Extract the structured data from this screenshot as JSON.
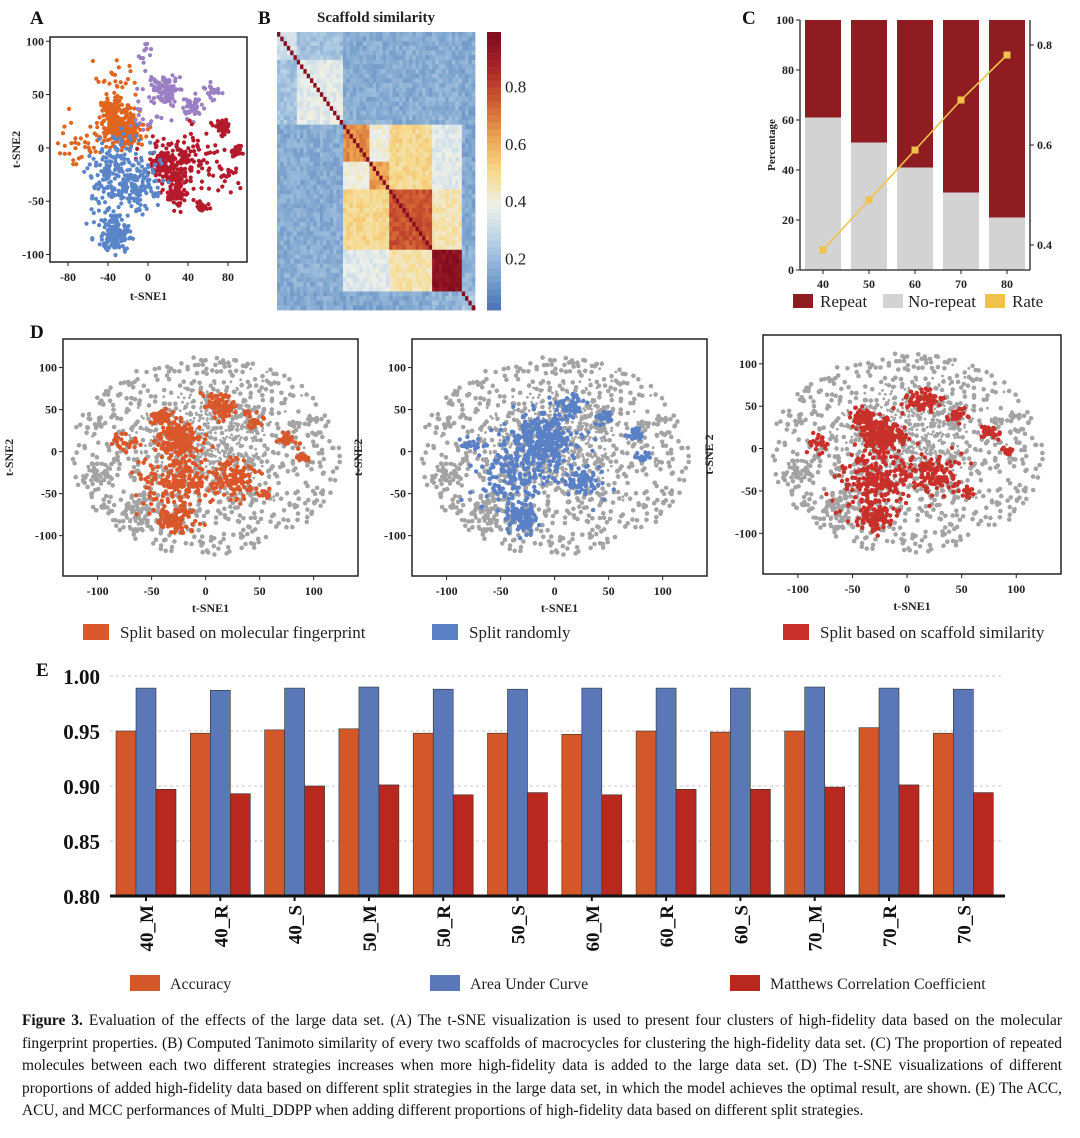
{
  "panel_labels": {
    "a": "A",
    "b": "B",
    "c": "C",
    "d": "D",
    "e": "E"
  },
  "chart_data": [
    {
      "id": "A",
      "type": "scatter",
      "xlabel": "t-SNE1",
      "ylabel": "t-SNE2",
      "xlim": [
        -98,
        99
      ],
      "ylim": [
        -107,
        104
      ],
      "xticks": [
        -80,
        -40,
        0,
        40,
        80
      ],
      "yticks": [
        100,
        50,
        0,
        -50,
        -100
      ],
      "grid": false,
      "clusters": [
        {
          "color": "#e0651e",
          "groups": [
            {
              "center": [
                -25,
                18
              ],
              "spread": 9,
              "count": 260
            },
            {
              "center": [
                -36,
                38
              ],
              "spread": 5,
              "count": 80
            },
            {
              "center": [
                -62,
                8
              ],
              "spread": 14,
              "count": 45
            },
            {
              "center": [
                -32,
                65
              ],
              "spread": 9,
              "count": 22
            }
          ]
        },
        {
          "color": "#9a7fc3",
          "groups": [
            {
              "center": [
                15,
                55
              ],
              "spread": 7,
              "count": 90
            },
            {
              "center": [
                45,
                40
              ],
              "spread": 5,
              "count": 40
            },
            {
              "center": [
                63,
                53
              ],
              "spread": 4,
              "count": 22
            },
            {
              "center": [
                2,
                38
              ],
              "spread": 12,
              "count": 22
            },
            {
              "center": [
                -3,
                90
              ],
              "spread": 4,
              "count": 10
            }
          ]
        },
        {
          "color": "#b51a2c",
          "groups": [
            {
              "center": [
                24,
                -15
              ],
              "spread": 11,
              "count": 180
            },
            {
              "center": [
                28,
                -42
              ],
              "spread": 6,
              "count": 60
            },
            {
              "center": [
                75,
                20
              ],
              "spread": 4,
              "count": 50
            },
            {
              "center": [
                55,
                -8
              ],
              "spread": 14,
              "count": 60
            },
            {
              "center": [
                88,
                -4
              ],
              "spread": 3,
              "count": 25
            },
            {
              "center": [
                55,
                -55
              ],
              "spread": 3,
              "count": 20
            },
            {
              "center": [
                80,
                -30
              ],
              "spread": 6,
              "count": 15
            }
          ]
        },
        {
          "color": "#5a85c8",
          "groups": [
            {
              "center": [
                -28,
                -27
              ],
              "spread": 17,
              "count": 250
            },
            {
              "center": [
                -32,
                -80
              ],
              "spread": 8,
              "count": 150
            },
            {
              "center": [
                -5,
                -35
              ],
              "spread": 10,
              "count": 50
            }
          ]
        }
      ]
    },
    {
      "id": "B",
      "type": "heatmap",
      "title": "Scaffold similarity",
      "colorbar_range": [
        0.02,
        0.99
      ],
      "colorbar_ticks": [
        "0.2",
        "0.4",
        "0.6",
        "0.8"
      ],
      "colormap": [
        "#4a72b2",
        "#7fa6d0",
        "#b9d2e6",
        "#eef0ea",
        "#f6d98a",
        "#eba24f",
        "#cf5a31",
        "#a8222a",
        "#7f0a1e"
      ],
      "block_edges": [
        0,
        10,
        33,
        46,
        56,
        78,
        93,
        100
      ],
      "block_mean": [
        [
          0.32,
          0.22,
          0.16,
          0.16,
          0.16,
          0.16,
          0.15
        ],
        [
          0.22,
          0.36,
          0.16,
          0.16,
          0.16,
          0.17,
          0.15
        ],
        [
          0.16,
          0.16,
          0.66,
          0.4,
          0.5,
          0.35,
          0.15
        ],
        [
          0.16,
          0.16,
          0.4,
          0.62,
          0.5,
          0.36,
          0.15
        ],
        [
          0.16,
          0.16,
          0.5,
          0.5,
          0.76,
          0.46,
          0.15
        ],
        [
          0.16,
          0.17,
          0.35,
          0.36,
          0.46,
          0.95,
          0.18
        ],
        [
          0.15,
          0.15,
          0.15,
          0.15,
          0.15,
          0.18,
          0.22
        ]
      ]
    },
    {
      "id": "C",
      "type": "bar",
      "categories": [
        "40",
        "50",
        "60",
        "70",
        "80"
      ],
      "ylabel": "Percentage",
      "ylim": [
        0,
        100
      ],
      "yticks": [
        0,
        20,
        40,
        60,
        80,
        100
      ],
      "y2lim": [
        0.35,
        0.85
      ],
      "y2ticks": [
        "0.4",
        "0.6",
        "0.8"
      ],
      "series": [
        {
          "name": "Repeat",
          "color": "#8e1c20",
          "values": [
            39,
            49,
            59,
            69,
            79
          ]
        },
        {
          "name": "No-repeat",
          "color": "#d3d3d3",
          "values": [
            61,
            51,
            41,
            31,
            21
          ]
        },
        {
          "name": "Rate",
          "color": "#f0c24a",
          "type": "line",
          "axis": "right",
          "values": [
            0.39,
            0.49,
            0.59,
            0.69,
            0.78
          ]
        }
      ],
      "legend": "bottom"
    },
    {
      "id": "D1",
      "type": "scatter",
      "xlabel": "t-SNE1",
      "ylabel": "t-SNE2",
      "xlim": [
        -132,
        141
      ],
      "ylim": [
        -148,
        134
      ],
      "xticks": [
        -100,
        -50,
        0,
        50,
        100
      ],
      "yticks": [
        100,
        50,
        0,
        -50,
        -100
      ],
      "background_color": "#a3a3a3",
      "legend_label": "Split based on molecular fingerprint",
      "highlight_color": "#d9572a",
      "highlight_groups": [
        {
          "center": [
            -25,
            15
          ],
          "spread": 10,
          "count": 200
        },
        {
          "center": [
            -42,
            40
          ],
          "spread": 5,
          "count": 60
        },
        {
          "center": [
            15,
            55
          ],
          "spread": 7,
          "count": 80
        },
        {
          "center": [
            -25,
            -35
          ],
          "spread": 17,
          "count": 200
        },
        {
          "center": [
            -30,
            -80
          ],
          "spread": 8,
          "count": 100
        },
        {
          "center": [
            25,
            -32
          ],
          "spread": 12,
          "count": 120
        },
        {
          "center": [
            75,
            15
          ],
          "spread": 4,
          "count": 30
        },
        {
          "center": [
            90,
            -5
          ],
          "spread": 3,
          "count": 15
        },
        {
          "center": [
            55,
            -50
          ],
          "spread": 3,
          "count": 15
        },
        {
          "center": [
            -75,
            10
          ],
          "spread": 6,
          "count": 25
        },
        {
          "center": [
            45,
            40
          ],
          "spread": 5,
          "count": 25
        }
      ]
    },
    {
      "id": "D2",
      "type": "scatter",
      "xlabel": "t-SNE1",
      "ylabel": "t-SNE2",
      "xlim": [
        -132,
        141
      ],
      "ylim": [
        -148,
        134
      ],
      "xticks": [
        -100,
        -50,
        0,
        50,
        100
      ],
      "yticks": [
        100,
        50,
        0,
        -50,
        -100
      ],
      "background_color": "#a3a3a3",
      "legend_label": "Split randomly",
      "highlight_color": "#5a80c6",
      "highlight_groups": [
        {
          "center": [
            -12,
            15
          ],
          "spread": 15,
          "count": 300
        },
        {
          "center": [
            -30,
            -80
          ],
          "spread": 8,
          "count": 100
        },
        {
          "center": [
            -40,
            -30
          ],
          "spread": 17,
          "count": 150
        },
        {
          "center": [
            25,
            -35
          ],
          "spread": 10,
          "count": 80
        },
        {
          "center": [
            15,
            55
          ],
          "spread": 7,
          "count": 60
        },
        {
          "center": [
            75,
            20
          ],
          "spread": 4,
          "count": 25
        },
        {
          "center": [
            82,
            -5
          ],
          "spread": 4,
          "count": 15
        },
        {
          "center": [
            -80,
            10
          ],
          "spread": 5,
          "count": 20
        },
        {
          "center": [
            45,
            40
          ],
          "spread": 5,
          "count": 25
        }
      ]
    },
    {
      "id": "D3",
      "type": "scatter",
      "xlabel": "t-SNE1",
      "ylabel": "t-SNE 2",
      "xlim": [
        -132,
        141
      ],
      "ylim": [
        -148,
        134
      ],
      "xticks": [
        -100,
        -50,
        0,
        50,
        100
      ],
      "yticks": [
        100,
        50,
        0,
        -50,
        -100
      ],
      "background_color": "#a3a3a3",
      "legend_label": "Split based on scaffold similarity",
      "highlight_color": "#c8302a",
      "highlight_groups": [
        {
          "center": [
            -25,
            15
          ],
          "spread": 10,
          "count": 200
        },
        {
          "center": [
            -42,
            38
          ],
          "spread": 5,
          "count": 60
        },
        {
          "center": [
            15,
            55
          ],
          "spread": 7,
          "count": 80
        },
        {
          "center": [
            -28,
            -35
          ],
          "spread": 17,
          "count": 220
        },
        {
          "center": [
            -30,
            -80
          ],
          "spread": 8,
          "count": 100
        },
        {
          "center": [
            25,
            -30
          ],
          "spread": 12,
          "count": 120
        },
        {
          "center": [
            75,
            18
          ],
          "spread": 4,
          "count": 30
        },
        {
          "center": [
            90,
            -5
          ],
          "spread": 3,
          "count": 15
        },
        {
          "center": [
            55,
            -52
          ],
          "spread": 3,
          "count": 15
        },
        {
          "center": [
            -80,
            8
          ],
          "spread": 6,
          "count": 25
        },
        {
          "center": [
            48,
            40
          ],
          "spread": 5,
          "count": 25
        }
      ]
    },
    {
      "id": "E",
      "type": "bar",
      "categories": [
        "40_M",
        "40_R",
        "40_S",
        "50_M",
        "50_R",
        "50_S",
        "60_M",
        "60_R",
        "60_S",
        "70_M",
        "70_R",
        "70_S"
      ],
      "ylim": [
        0.8,
        1.0
      ],
      "yticks": [
        "0.80",
        "0.85",
        "0.90",
        "0.95",
        "1.00"
      ],
      "grid": "dashed horizontal",
      "series": [
        {
          "name": "Accuracy",
          "color": "#d4572a",
          "values": [
            0.95,
            0.948,
            0.951,
            0.952,
            0.948,
            0.948,
            0.947,
            0.95,
            0.949,
            0.95,
            0.953,
            0.948
          ]
        },
        {
          "name": "Area Under Curve",
          "color": "#5a78b8",
          "values": [
            0.989,
            0.987,
            0.989,
            0.99,
            0.988,
            0.988,
            0.989,
            0.989,
            0.989,
            0.99,
            0.989,
            0.988
          ]
        },
        {
          "name": "Matthews Correlation Coefficient",
          "color": "#b9281f",
          "values": [
            0.897,
            0.893,
            0.9,
            0.901,
            0.892,
            0.894,
            0.892,
            0.897,
            0.897,
            0.899,
            0.901,
            0.894
          ]
        }
      ],
      "legend": "bottom"
    }
  ],
  "caption": {
    "label": "Figure 3.",
    "text": "Evaluation of the effects of the large data set. (A) The t-SNE visualization is used to present four clusters of high-fidelity data based on the molecular fingerprint properties. (B) Computed Tanimoto similarity of every two scaffolds of macrocycles for clustering the high-fidelity data set. (C) The proportion of repeated molecules between each two different strategies increases when more high-fidelity data is added to the large data set. (D) The t-SNE visualizations of different proportions of added high-fidelity data based on different split strategies in the large data set, in which the model achieves the optimal result, are shown. (E) The ACC, ACU, and MCC performances of Multi_DDPP when adding different proportions of high-fidelity data based on different split strategies."
  }
}
